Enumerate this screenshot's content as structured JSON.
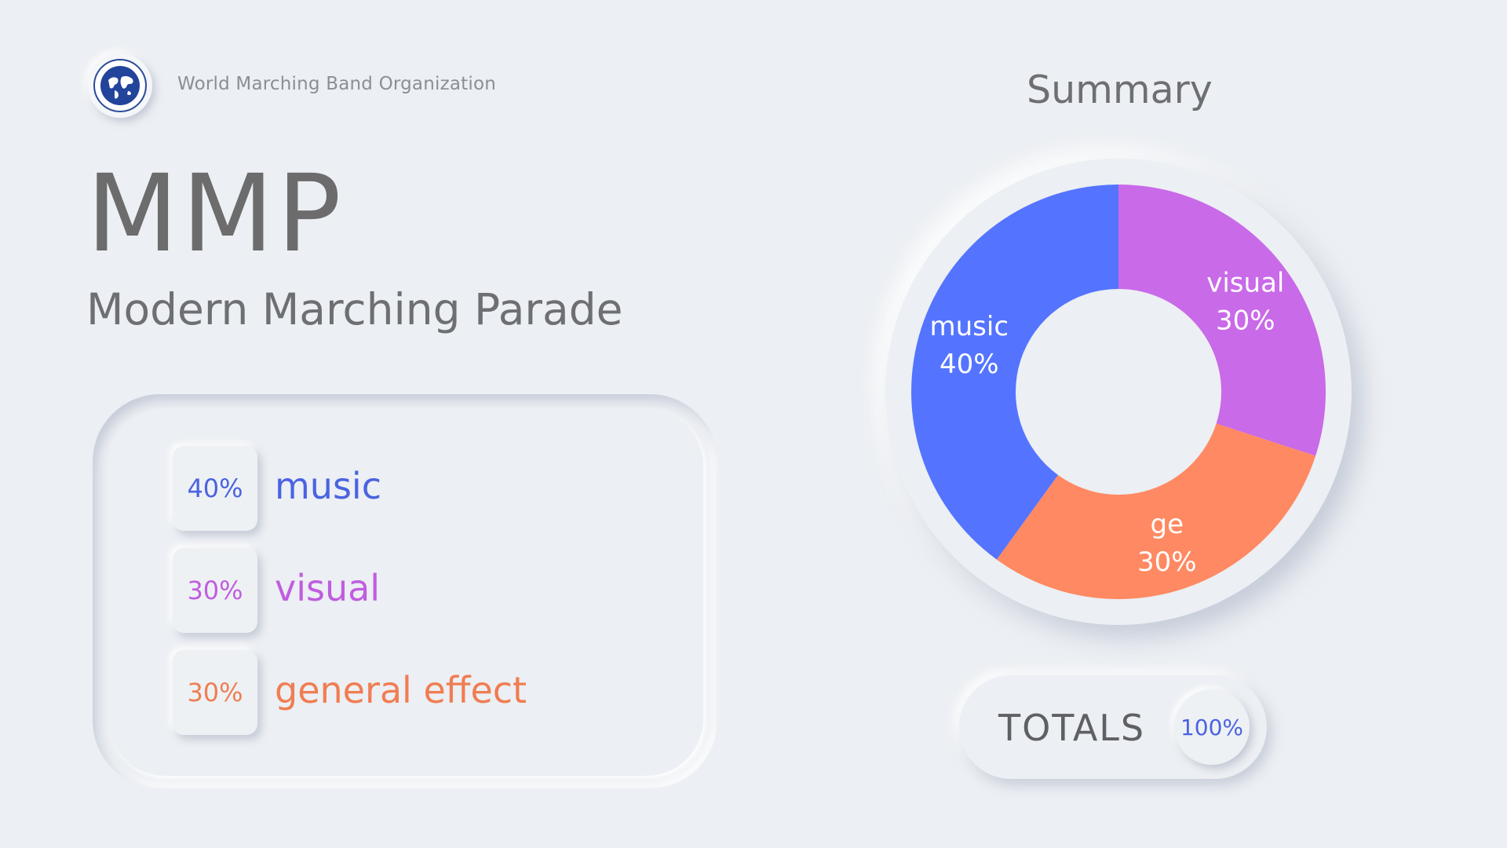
{
  "header": {
    "org_name": "World Marching Band Organization",
    "logo_icon": "globe-emblem-icon",
    "title": "MMP",
    "subtitle": "Modern Marching Parade"
  },
  "legend": [
    {
      "pct": "40%",
      "label": "music",
      "color": "#4a63e0"
    },
    {
      "pct": "30%",
      "label": "visual",
      "color": "#c05de0"
    },
    {
      "pct": "30%",
      "label": "general effect",
      "color": "#f07d52"
    }
  ],
  "summary": {
    "title": "Summary"
  },
  "totals": {
    "label": "TOTALS",
    "value": "100%"
  },
  "chart_data": {
    "type": "pie",
    "title": "Summary",
    "donut": true,
    "categories": [
      "visual",
      "ge",
      "music"
    ],
    "values": [
      30,
      30,
      40
    ],
    "value_labels": [
      "30%",
      "30%",
      "40%"
    ],
    "colors": [
      "#c96ae8",
      "#ff8962",
      "#5474ff"
    ],
    "label_color": "#ffffff"
  }
}
